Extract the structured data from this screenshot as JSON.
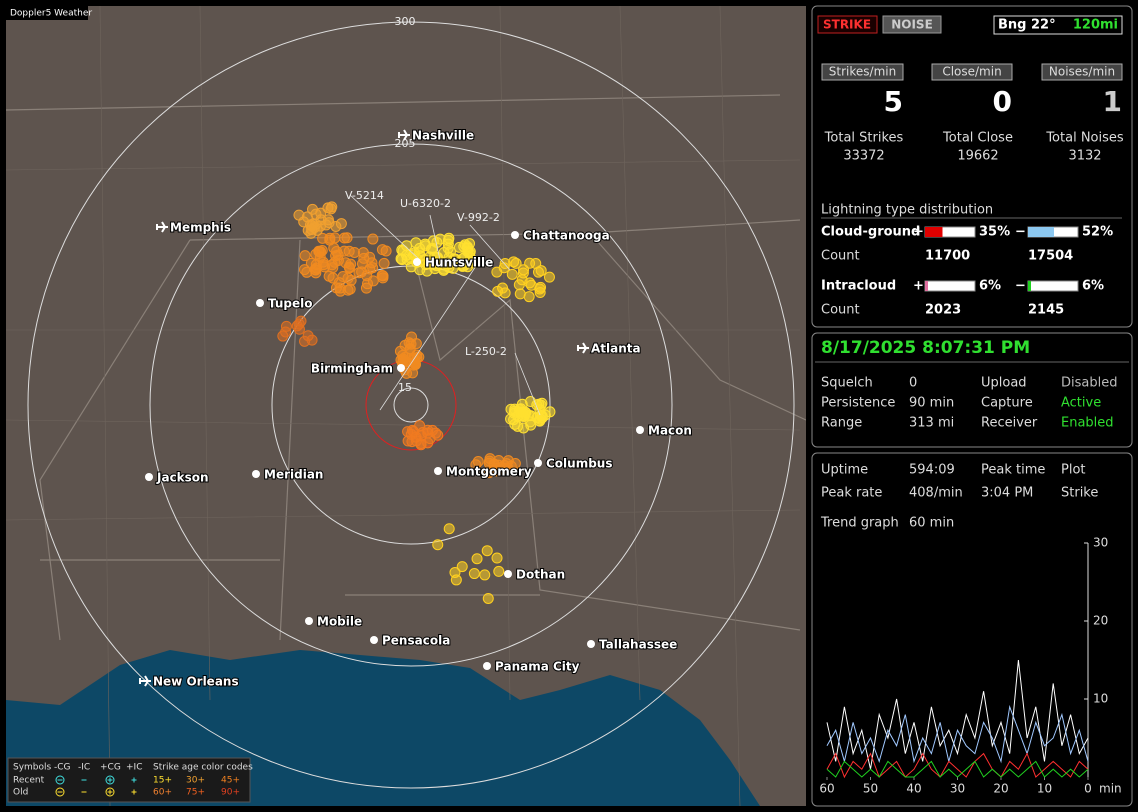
{
  "app_title": "Doppler5 Weather",
  "map": {
    "range_labels": [
      300,
      205,
      15
    ],
    "cities": [
      "Nashville",
      "Memphis",
      "Chattanooga",
      "Huntsville",
      "Tupelo",
      "Atlanta",
      "Birmingham",
      "Macon",
      "Jackson",
      "Meridian",
      "Montgomery",
      "Columbus",
      "Dothan",
      "Mobile",
      "Pensacola",
      "Tallahassee",
      "Panama City",
      "New Orleans"
    ],
    "tracks": [
      "V-5214",
      "U-6320-2",
      "V-992-2",
      "L-250-2"
    ]
  },
  "legend": {
    "symbols_label": "Symbols",
    "columns": [
      "-CG",
      "-IC",
      "+CG",
      "+IC"
    ],
    "age_title": "Strike age color codes",
    "rows": [
      {
        "label": "Recent",
        "ages": [
          "15+",
          "30+",
          "45+"
        ]
      },
      {
        "label": "Old",
        "ages": [
          "60+",
          "75+",
          "90+"
        ]
      }
    ]
  },
  "status": {
    "modes": [
      "STRIKE",
      "NOISE"
    ],
    "bearing": "Bng 22°",
    "range": "120mi",
    "rates": [
      {
        "label": "Strikes/min",
        "value": 5
      },
      {
        "label": "Close/min",
        "value": 0
      },
      {
        "label": "Noises/min",
        "value": 1
      }
    ],
    "totals": [
      {
        "label": "Total Strikes",
        "value": 33372
      },
      {
        "label": "Total Close",
        "value": 19662
      },
      {
        "label": "Total Noises",
        "value": 3132
      }
    ],
    "distribution": {
      "title": "Lightning type distribution",
      "count_label": "Count",
      "plus_sign": "+",
      "minus_sign": "−",
      "rows": [
        {
          "label": "Cloud-ground",
          "plus": {
            "value": 35,
            "label": "35%",
            "color": "#e00000"
          },
          "minus": {
            "value": 52,
            "label": "52%",
            "color": "#8cc8f0"
          },
          "plus_count": 11700,
          "minus_count": 17504
        },
        {
          "label": "Intracloud",
          "plus": {
            "value": 6,
            "label": "6%",
            "color": "#e070a0"
          },
          "minus": {
            "value": 6,
            "label": "6%",
            "color": "#20d020"
          },
          "plus_count": 2023,
          "minus_count": 2145
        }
      ]
    }
  },
  "info": {
    "datetime": "8/17/2025 8:07:31 PM",
    "rows": [
      {
        "label": "Squelch",
        "value": 0,
        "label2": "Upload",
        "value2": "Disabled"
      },
      {
        "label": "Persistence",
        "value": "90 min",
        "label2": "Capture",
        "value2": "Active"
      },
      {
        "label": "Range",
        "value": "313 mi",
        "label2": "Receiver",
        "value2": "Enabled"
      }
    ]
  },
  "stats": {
    "uptime_label": "Uptime",
    "uptime": "594:09",
    "peak_time_label": "Peak time",
    "peak_time": "3:04 PM",
    "plot_label": "Plot",
    "plot": "Strike",
    "peak_rate_label": "Peak rate",
    "peak_rate": "408/min",
    "trend_label": "Trend graph",
    "trend_window": "60 min"
  },
  "trend_graph": {
    "x_unit": "min",
    "xlim": [
      60,
      0
    ],
    "ylim": [
      0,
      30
    ],
    "xticks": [
      60,
      50,
      40,
      30,
      20,
      10,
      0
    ],
    "yticks": [
      10,
      20,
      30
    ],
    "x": [
      60,
      58,
      56,
      54,
      52,
      50,
      48,
      46,
      44,
      42,
      40,
      38,
      36,
      34,
      32,
      30,
      28,
      26,
      24,
      22,
      20,
      18,
      16,
      14,
      12,
      10,
      8,
      6,
      4,
      2,
      0
    ],
    "series": [
      {
        "color": "#ffffff",
        "values": [
          7,
          2,
          9,
          3,
          6,
          1,
          8,
          5,
          10,
          3,
          7,
          2,
          9,
          4,
          6,
          3,
          8,
          5,
          11,
          4,
          7,
          3,
          15,
          5,
          9,
          2,
          12,
          4,
          8,
          3,
          5
        ]
      },
      {
        "color": "#a0c8ff",
        "values": [
          4,
          6,
          2,
          7,
          3,
          5,
          2,
          6,
          4,
          8,
          2,
          5,
          3,
          7,
          2,
          6,
          4,
          3,
          7,
          5,
          2,
          9,
          6,
          3,
          7,
          4,
          5,
          8,
          3,
          6,
          2
        ]
      },
      {
        "color": "#ff3030",
        "values": [
          1,
          3,
          0,
          2,
          1,
          3,
          0,
          1,
          2,
          0,
          1,
          3,
          1,
          0,
          2,
          1,
          0,
          2,
          3,
          1,
          0,
          2,
          1,
          3,
          0,
          1,
          2,
          1,
          0,
          2,
          1
        ]
      },
      {
        "color": "#20d020",
        "values": [
          1,
          0,
          2,
          1,
          0,
          1,
          0,
          2,
          1,
          0,
          0,
          1,
          2,
          0,
          1,
          0,
          1,
          2,
          0,
          1,
          0,
          1,
          0,
          1,
          2,
          0,
          1,
          0,
          1,
          0,
          1
        ]
      }
    ]
  }
}
